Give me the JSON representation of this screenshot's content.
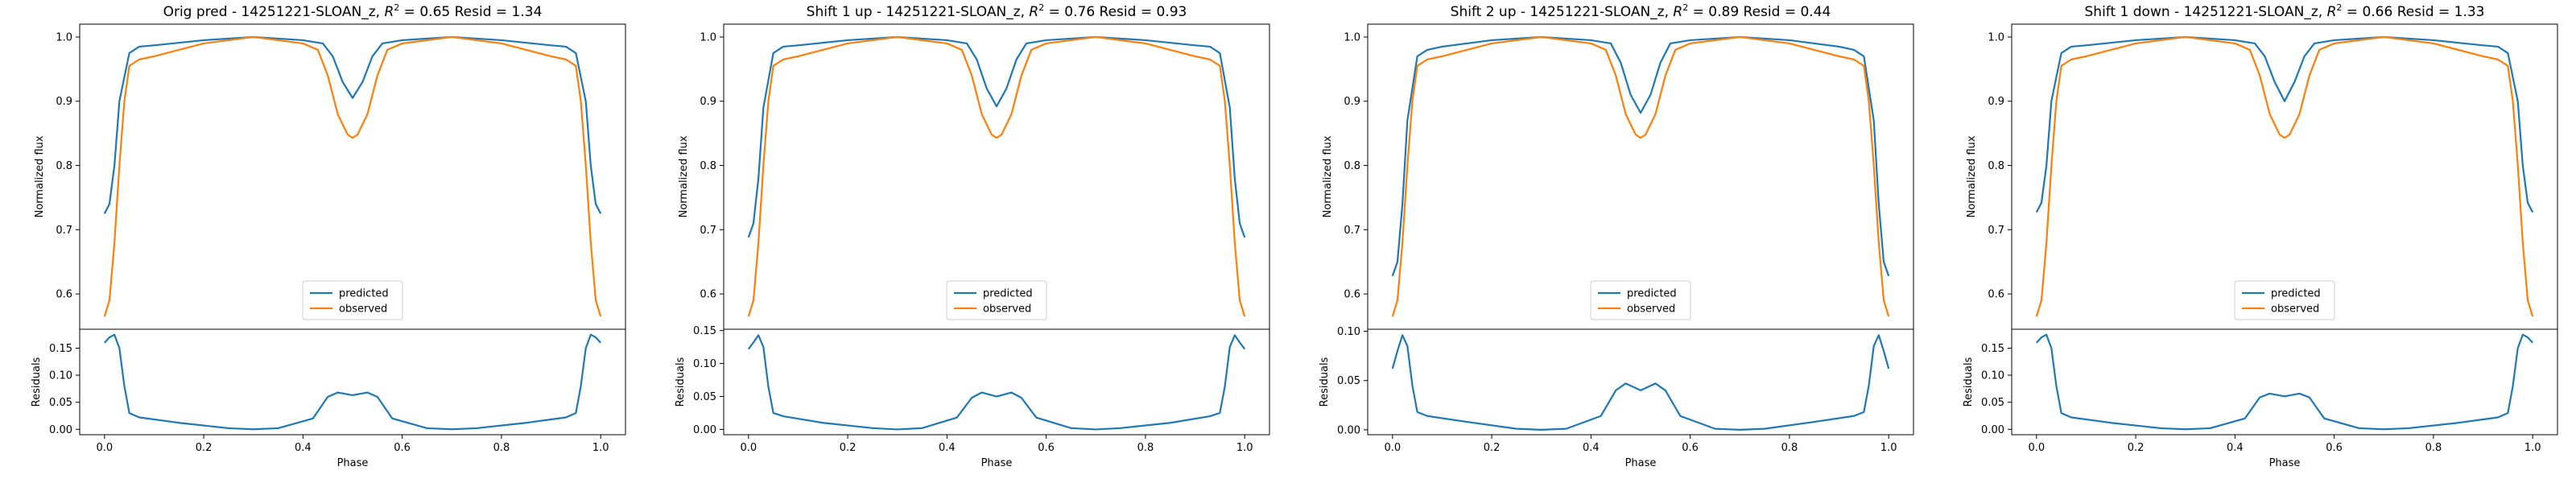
{
  "chart_data": [
    {
      "type": "line",
      "title_prefix": "Orig pred - 14251221-SLOAN_z, ",
      "r2": "0.65",
      "resid": "1.34",
      "xlabel": "Phase",
      "ylabel_top": "Normalized flux",
      "ylabel_bottom": "Residuals",
      "xlim": [
        -0.05,
        1.05
      ],
      "xticks": [
        "0.0",
        "0.2",
        "0.4",
        "0.6",
        "0.8",
        "1.0"
      ],
      "ylim_top": [
        0.545,
        1.02
      ],
      "yticks_top": [
        "0.6",
        "0.7",
        "0.8",
        "0.9",
        "1.0"
      ],
      "ylim_bottom": [
        -0.01,
        0.185
      ],
      "yticks_bottom": [
        "0.00",
        "0.05",
        "0.10",
        "0.15"
      ],
      "legend_loc": "lower center",
      "series": [
        {
          "name": "predicted",
          "color": "#1f77b4",
          "x": [
            0,
            0.01,
            0.02,
            0.03,
            0.05,
            0.07,
            0.1,
            0.2,
            0.3,
            0.4,
            0.44,
            0.46,
            0.48,
            0.5,
            0.52,
            0.54,
            0.56,
            0.6,
            0.7,
            0.8,
            0.9,
            0.93,
            0.95,
            0.97,
            0.98,
            0.99,
            1.0
          ],
          "y": [
            0.725,
            0.74,
            0.8,
            0.9,
            0.975,
            0.985,
            0.987,
            0.995,
            1.0,
            0.995,
            0.99,
            0.97,
            0.93,
            0.905,
            0.93,
            0.97,
            0.99,
            0.995,
            1.0,
            0.995,
            0.987,
            0.985,
            0.975,
            0.9,
            0.8,
            0.74,
            0.725
          ]
        },
        {
          "name": "observed",
          "color": "#ff7f0e",
          "x": [
            0,
            0.01,
            0.02,
            0.03,
            0.04,
            0.05,
            0.07,
            0.1,
            0.2,
            0.3,
            0.4,
            0.43,
            0.45,
            0.47,
            0.49,
            0.5,
            0.51,
            0.53,
            0.55,
            0.57,
            0.6,
            0.7,
            0.8,
            0.9,
            0.93,
            0.95,
            0.96,
            0.97,
            0.98,
            0.99,
            1.0
          ],
          "y": [
            0.565,
            0.59,
            0.68,
            0.8,
            0.9,
            0.955,
            0.965,
            0.97,
            0.99,
            1.0,
            0.99,
            0.98,
            0.94,
            0.88,
            0.848,
            0.843,
            0.848,
            0.88,
            0.94,
            0.98,
            0.99,
            1.0,
            0.99,
            0.97,
            0.965,
            0.955,
            0.9,
            0.8,
            0.68,
            0.59,
            0.565
          ]
        },
        {
          "name": "residuals",
          "color": "#1f77b4",
          "panel": "bottom",
          "x": [
            0,
            0.01,
            0.02,
            0.03,
            0.04,
            0.05,
            0.07,
            0.15,
            0.25,
            0.3,
            0.35,
            0.42,
            0.45,
            0.47,
            0.5,
            0.53,
            0.55,
            0.58,
            0.65,
            0.7,
            0.75,
            0.85,
            0.93,
            0.95,
            0.96,
            0.97,
            0.98,
            0.99,
            1.0
          ],
          "y": [
            0.16,
            0.17,
            0.175,
            0.15,
            0.08,
            0.03,
            0.022,
            0.012,
            0.002,
            0.0,
            0.002,
            0.02,
            0.06,
            0.068,
            0.063,
            0.068,
            0.06,
            0.02,
            0.002,
            0.0,
            0.002,
            0.012,
            0.022,
            0.03,
            0.08,
            0.15,
            0.175,
            0.17,
            0.16
          ]
        }
      ]
    },
    {
      "type": "line",
      "title_prefix": "Shift 1 up - 14251221-SLOAN_z, ",
      "r2": "0.76",
      "resid": "0.93",
      "xlabel": "Phase",
      "ylabel_top": "Normalized flux",
      "ylabel_bottom": "Residuals",
      "xlim": [
        -0.05,
        1.05
      ],
      "xticks": [
        "0.0",
        "0.2",
        "0.4",
        "0.6",
        "0.8",
        "1.0"
      ],
      "ylim_top": [
        0.545,
        1.02
      ],
      "yticks_top": [
        "0.6",
        "0.7",
        "0.8",
        "0.9",
        "1.0"
      ],
      "ylim_bottom": [
        -0.008,
        0.152
      ],
      "yticks_bottom": [
        "0.00",
        "0.05",
        "0.10",
        "0.15"
      ],
      "legend_loc": "lower center",
      "series": [
        {
          "name": "predicted",
          "color": "#1f77b4",
          "x": [
            0,
            0.01,
            0.02,
            0.03,
            0.05,
            0.07,
            0.1,
            0.2,
            0.3,
            0.4,
            0.44,
            0.46,
            0.48,
            0.5,
            0.52,
            0.54,
            0.56,
            0.6,
            0.7,
            0.8,
            0.9,
            0.93,
            0.95,
            0.97,
            0.98,
            0.99,
            1.0
          ],
          "y": [
            0.688,
            0.71,
            0.78,
            0.89,
            0.975,
            0.985,
            0.987,
            0.995,
            1.0,
            0.995,
            0.99,
            0.965,
            0.92,
            0.892,
            0.92,
            0.965,
            0.99,
            0.995,
            1.0,
            0.995,
            0.987,
            0.985,
            0.975,
            0.89,
            0.78,
            0.71,
            0.688
          ]
        },
        {
          "name": "observed",
          "color": "#ff7f0e",
          "x": [
            0,
            0.01,
            0.02,
            0.03,
            0.04,
            0.05,
            0.07,
            0.1,
            0.2,
            0.3,
            0.4,
            0.43,
            0.45,
            0.47,
            0.49,
            0.5,
            0.51,
            0.53,
            0.55,
            0.57,
            0.6,
            0.7,
            0.8,
            0.9,
            0.93,
            0.95,
            0.96,
            0.97,
            0.98,
            0.99,
            1.0
          ],
          "y": [
            0.565,
            0.59,
            0.68,
            0.8,
            0.9,
            0.955,
            0.965,
            0.97,
            0.99,
            1.0,
            0.99,
            0.98,
            0.94,
            0.88,
            0.848,
            0.843,
            0.848,
            0.88,
            0.94,
            0.98,
            0.99,
            1.0,
            0.99,
            0.97,
            0.965,
            0.955,
            0.9,
            0.8,
            0.68,
            0.59,
            0.565
          ]
        },
        {
          "name": "residuals",
          "color": "#1f77b4",
          "panel": "bottom",
          "x": [
            0,
            0.01,
            0.02,
            0.03,
            0.04,
            0.05,
            0.07,
            0.15,
            0.25,
            0.3,
            0.35,
            0.42,
            0.45,
            0.47,
            0.5,
            0.53,
            0.55,
            0.58,
            0.65,
            0.7,
            0.75,
            0.85,
            0.93,
            0.95,
            0.96,
            0.97,
            0.98,
            0.99,
            1.0
          ],
          "y": [
            0.122,
            0.132,
            0.143,
            0.125,
            0.065,
            0.025,
            0.02,
            0.01,
            0.002,
            0.0,
            0.002,
            0.018,
            0.048,
            0.056,
            0.05,
            0.056,
            0.048,
            0.018,
            0.002,
            0.0,
            0.002,
            0.01,
            0.02,
            0.025,
            0.065,
            0.125,
            0.143,
            0.132,
            0.122
          ]
        }
      ]
    },
    {
      "type": "line",
      "title_prefix": "Shift 2 up - 14251221-SLOAN_z, ",
      "r2": "0.89",
      "resid": "0.44",
      "xlabel": "Phase",
      "ylabel_top": "Normalized flux",
      "ylabel_bottom": "Residuals",
      "xlim": [
        -0.05,
        1.05
      ],
      "xticks": [
        "0.0",
        "0.2",
        "0.4",
        "0.6",
        "0.8",
        "1.0"
      ],
      "ylim_top": [
        0.545,
        1.02
      ],
      "yticks_top": [
        "0.6",
        "0.7",
        "0.8",
        "0.9",
        "1.0"
      ],
      "ylim_bottom": [
        -0.005,
        0.102
      ],
      "yticks_bottom": [
        "0.00",
        "0.05",
        "0.10"
      ],
      "legend_loc": "lower center",
      "series": [
        {
          "name": "predicted",
          "color": "#1f77b4",
          "x": [
            0,
            0.01,
            0.02,
            0.03,
            0.05,
            0.07,
            0.1,
            0.2,
            0.3,
            0.4,
            0.44,
            0.46,
            0.48,
            0.5,
            0.52,
            0.54,
            0.56,
            0.6,
            0.7,
            0.8,
            0.9,
            0.93,
            0.95,
            0.97,
            0.98,
            0.99,
            1.0
          ],
          "y": [
            0.628,
            0.65,
            0.74,
            0.87,
            0.97,
            0.98,
            0.985,
            0.995,
            1.0,
            0.995,
            0.99,
            0.96,
            0.91,
            0.882,
            0.91,
            0.96,
            0.99,
            0.995,
            1.0,
            0.995,
            0.985,
            0.98,
            0.97,
            0.87,
            0.74,
            0.65,
            0.628
          ]
        },
        {
          "name": "observed",
          "color": "#ff7f0e",
          "x": [
            0,
            0.01,
            0.02,
            0.03,
            0.04,
            0.05,
            0.07,
            0.1,
            0.2,
            0.3,
            0.4,
            0.43,
            0.45,
            0.47,
            0.49,
            0.5,
            0.51,
            0.53,
            0.55,
            0.57,
            0.6,
            0.7,
            0.8,
            0.9,
            0.93,
            0.95,
            0.96,
            0.97,
            0.98,
            0.99,
            1.0
          ],
          "y": [
            0.565,
            0.59,
            0.68,
            0.8,
            0.9,
            0.955,
            0.965,
            0.97,
            0.99,
            1.0,
            0.99,
            0.98,
            0.94,
            0.88,
            0.848,
            0.843,
            0.848,
            0.88,
            0.94,
            0.98,
            0.99,
            1.0,
            0.99,
            0.97,
            0.965,
            0.955,
            0.9,
            0.8,
            0.68,
            0.59,
            0.565
          ]
        },
        {
          "name": "residuals",
          "color": "#1f77b4",
          "panel": "bottom",
          "x": [
            0,
            0.01,
            0.02,
            0.03,
            0.04,
            0.05,
            0.07,
            0.15,
            0.25,
            0.3,
            0.35,
            0.42,
            0.45,
            0.47,
            0.5,
            0.53,
            0.55,
            0.58,
            0.65,
            0.7,
            0.75,
            0.85,
            0.93,
            0.95,
            0.96,
            0.97,
            0.98,
            0.99,
            1.0
          ],
          "y": [
            0.062,
            0.08,
            0.096,
            0.085,
            0.045,
            0.018,
            0.014,
            0.008,
            0.001,
            0.0,
            0.001,
            0.014,
            0.04,
            0.047,
            0.04,
            0.047,
            0.04,
            0.014,
            0.001,
            0.0,
            0.001,
            0.008,
            0.014,
            0.018,
            0.045,
            0.085,
            0.096,
            0.08,
            0.062
          ]
        }
      ]
    },
    {
      "type": "line",
      "title_prefix": "Shift 1 down - 14251221-SLOAN_z, ",
      "r2": "0.66",
      "resid": "1.33",
      "xlabel": "Phase",
      "ylabel_top": "Normalized flux",
      "ylabel_bottom": "Residuals",
      "xlim": [
        -0.05,
        1.05
      ],
      "xticks": [
        "0.0",
        "0.2",
        "0.4",
        "0.6",
        "0.8",
        "1.0"
      ],
      "ylim_top": [
        0.545,
        1.02
      ],
      "yticks_top": [
        "0.6",
        "0.7",
        "0.8",
        "0.9",
        "1.0"
      ],
      "ylim_bottom": [
        -0.01,
        0.185
      ],
      "yticks_bottom": [
        "0.00",
        "0.05",
        "0.10",
        "0.15"
      ],
      "legend_loc": "lower center",
      "series": [
        {
          "name": "predicted",
          "color": "#1f77b4",
          "x": [
            0,
            0.01,
            0.02,
            0.03,
            0.05,
            0.07,
            0.1,
            0.2,
            0.3,
            0.4,
            0.44,
            0.46,
            0.48,
            0.5,
            0.52,
            0.54,
            0.56,
            0.6,
            0.7,
            0.8,
            0.9,
            0.93,
            0.95,
            0.97,
            0.98,
            0.99,
            1.0
          ],
          "y": [
            0.727,
            0.742,
            0.8,
            0.9,
            0.975,
            0.985,
            0.987,
            0.995,
            1.0,
            0.995,
            0.99,
            0.97,
            0.93,
            0.9,
            0.93,
            0.97,
            0.99,
            0.995,
            1.0,
            0.995,
            0.987,
            0.985,
            0.975,
            0.9,
            0.8,
            0.742,
            0.727
          ]
        },
        {
          "name": "observed",
          "color": "#ff7f0e",
          "x": [
            0,
            0.01,
            0.02,
            0.03,
            0.04,
            0.05,
            0.07,
            0.1,
            0.2,
            0.3,
            0.4,
            0.43,
            0.45,
            0.47,
            0.49,
            0.5,
            0.51,
            0.53,
            0.55,
            0.57,
            0.6,
            0.7,
            0.8,
            0.9,
            0.93,
            0.95,
            0.96,
            0.97,
            0.98,
            0.99,
            1.0
          ],
          "y": [
            0.565,
            0.59,
            0.68,
            0.8,
            0.9,
            0.955,
            0.965,
            0.97,
            0.99,
            1.0,
            0.99,
            0.98,
            0.94,
            0.88,
            0.848,
            0.843,
            0.848,
            0.88,
            0.94,
            0.98,
            0.99,
            1.0,
            0.99,
            0.97,
            0.965,
            0.955,
            0.9,
            0.8,
            0.68,
            0.59,
            0.565
          ]
        },
        {
          "name": "residuals",
          "color": "#1f77b4",
          "panel": "bottom",
          "x": [
            0,
            0.01,
            0.02,
            0.03,
            0.04,
            0.05,
            0.07,
            0.15,
            0.25,
            0.3,
            0.35,
            0.42,
            0.45,
            0.47,
            0.5,
            0.53,
            0.55,
            0.58,
            0.65,
            0.7,
            0.75,
            0.85,
            0.93,
            0.95,
            0.96,
            0.97,
            0.98,
            0.99,
            1.0
          ],
          "y": [
            0.16,
            0.17,
            0.175,
            0.15,
            0.08,
            0.03,
            0.022,
            0.012,
            0.002,
            0.0,
            0.002,
            0.02,
            0.059,
            0.066,
            0.061,
            0.066,
            0.059,
            0.02,
            0.002,
            0.0,
            0.002,
            0.012,
            0.022,
            0.03,
            0.08,
            0.15,
            0.175,
            0.17,
            0.16
          ]
        }
      ]
    }
  ]
}
